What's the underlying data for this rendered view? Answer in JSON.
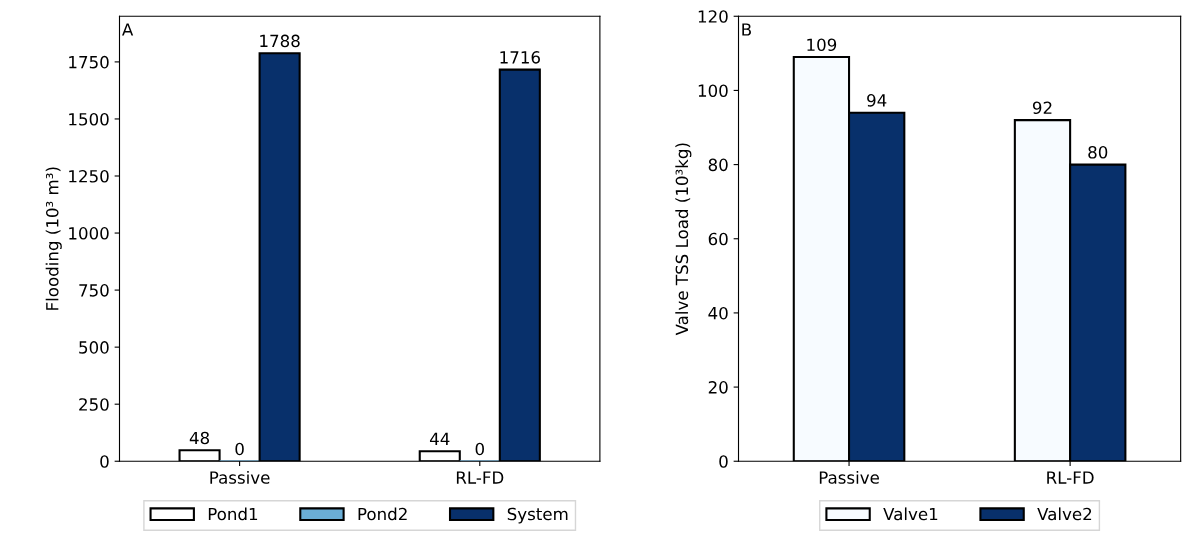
{
  "chart_data": [
    {
      "type": "bar",
      "ylabel": "Flooding (10³ m³)",
      "annotations": [
        "A"
      ],
      "categories": [
        "Passive",
        "RL-FD"
      ],
      "series": [
        {
          "name": "Pond1",
          "color": "#ffffff",
          "values": [
            48,
            44
          ]
        },
        {
          "name": "Pond2",
          "color": "#6baed6",
          "values": [
            0,
            0
          ]
        },
        {
          "name": "System",
          "color": "#08306b",
          "values": [
            1788,
            1716
          ]
        }
      ],
      "ylim": [
        0,
        1950
      ],
      "yticks": [
        0,
        250,
        500,
        750,
        1000,
        1250,
        1500,
        1750
      ],
      "data_labels": true,
      "legend": "bottom",
      "grid": false
    },
    {
      "type": "bar",
      "ylabel": "Valve TSS Load (10³kg)",
      "annotations": [
        "B"
      ],
      "categories": [
        "Passive",
        "RL-FD"
      ],
      "series": [
        {
          "name": "Valve1",
          "color": "#f7fbff",
          "values": [
            109,
            92
          ]
        },
        {
          "name": "Valve2",
          "color": "#08306b",
          "values": [
            94,
            80
          ]
        }
      ],
      "ylim": [
        0,
        120
      ],
      "yticks": [
        0,
        20,
        40,
        60,
        80,
        100,
        120
      ],
      "data_labels": true,
      "legend": "bottom",
      "grid": false
    }
  ]
}
